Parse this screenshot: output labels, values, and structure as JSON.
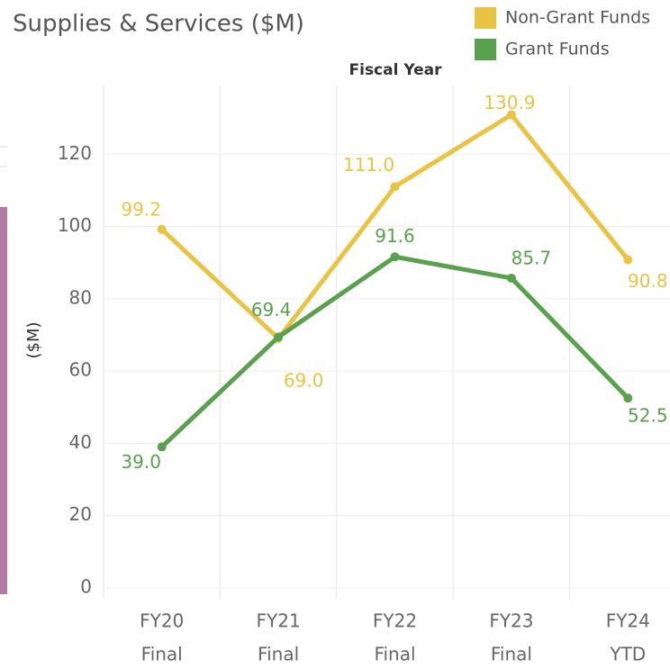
{
  "chart_data": {
    "type": "line",
    "title": "Supplies & Services ($M)",
    "x_header": "Fiscal Year",
    "y_label": "($M)",
    "categories": [
      [
        "FY20",
        "Final"
      ],
      [
        "FY21",
        "Final"
      ],
      [
        "FY22",
        "Final"
      ],
      [
        "FY23",
        "Final"
      ],
      [
        "FY24",
        "YTD"
      ]
    ],
    "series": [
      {
        "name": "Non-Grant Funds",
        "color": "#e9c444",
        "values": [
          99.2,
          69.0,
          111.0,
          130.9,
          90.8
        ],
        "value_labels": [
          "99.2",
          "69.0",
          "111.0",
          "130.9",
          "90.8"
        ]
      },
      {
        "name": "Grant Funds",
        "color": "#59a14f",
        "values": [
          39.0,
          69.4,
          91.6,
          85.7,
          52.5
        ],
        "value_labels": [
          "39.0",
          "69.4",
          "91.6",
          "85.7",
          "52.5"
        ]
      }
    ],
    "ylim": [
      -3,
      139
    ],
    "yticks": [
      0,
      20,
      40,
      60,
      80,
      100,
      120
    ],
    "grid": true,
    "legend": "top-right"
  }
}
